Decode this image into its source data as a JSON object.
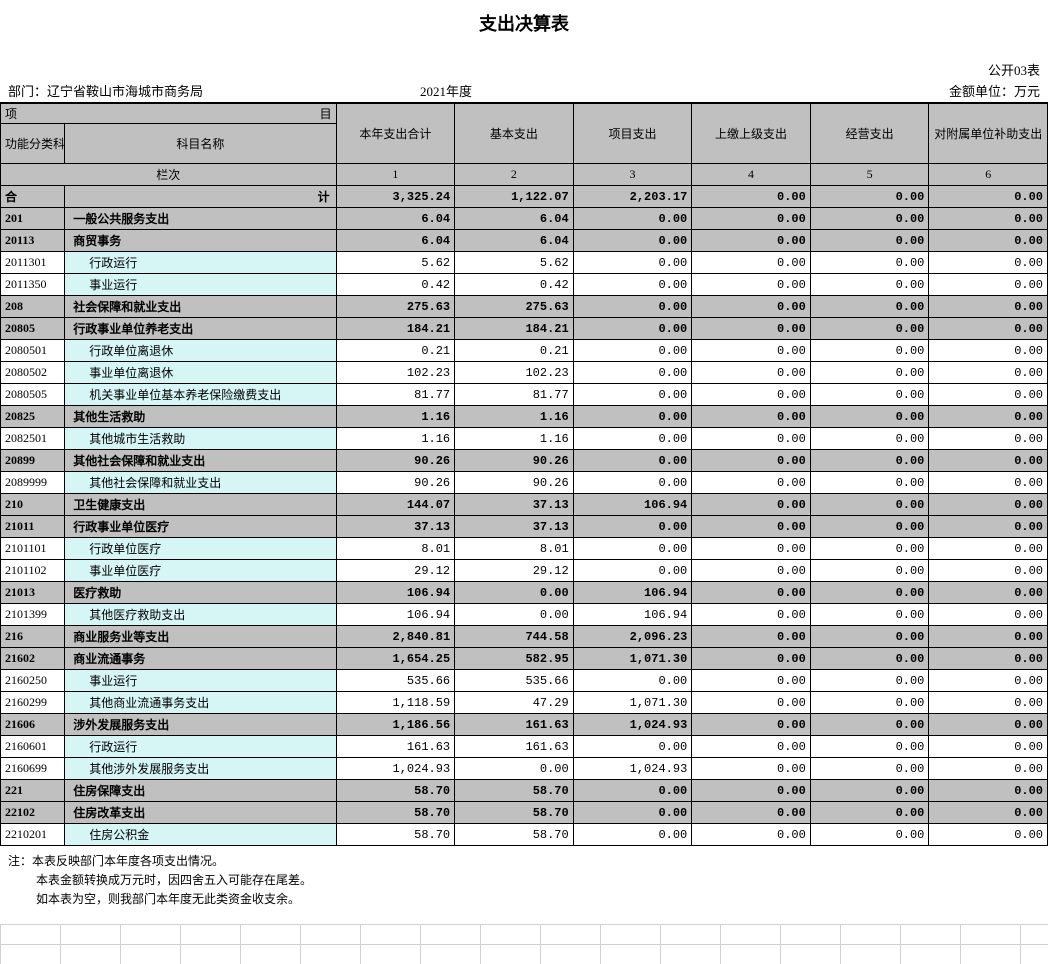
{
  "title": "支出决算表",
  "form_code": "公开03表",
  "dept_label": "部门：辽宁省鞍山市海城市商务局",
  "year": "2021年度",
  "unit": "金额单位：万元",
  "header": {
    "item": "项",
    "item_suffix": "目",
    "code": "功能分类科目编码",
    "name": "科目名称",
    "cols": [
      "本年支出合计",
      "基本支出",
      "项目支出",
      "上缴上级支出",
      "经营支出",
      "对附属单位补助支出"
    ],
    "column_row_label": "栏次",
    "column_nums": [
      "1",
      "2",
      "3",
      "4",
      "5",
      "6"
    ]
  },
  "total": {
    "label_a": "合",
    "label_b": "计",
    "vals": [
      "3,325.24",
      "1,122.07",
      "2,203.17",
      "0.00",
      "0.00",
      "0.00"
    ]
  },
  "rows": [
    {
      "lvl": 1,
      "code": "201",
      "name": "一般公共服务支出",
      "vals": [
        "6.04",
        "6.04",
        "0.00",
        "0.00",
        "0.00",
        "0.00"
      ]
    },
    {
      "lvl": 1,
      "code": "20113",
      "name": "商贸事务",
      "vals": [
        "6.04",
        "6.04",
        "0.00",
        "0.00",
        "0.00",
        "0.00"
      ]
    },
    {
      "lvl": 2,
      "code": "2011301",
      "name": "行政运行",
      "vals": [
        "5.62",
        "5.62",
        "0.00",
        "0.00",
        "0.00",
        "0.00"
      ]
    },
    {
      "lvl": 2,
      "code": "2011350",
      "name": "事业运行",
      "vals": [
        "0.42",
        "0.42",
        "0.00",
        "0.00",
        "0.00",
        "0.00"
      ]
    },
    {
      "lvl": 1,
      "code": "208",
      "name": "社会保障和就业支出",
      "vals": [
        "275.63",
        "275.63",
        "0.00",
        "0.00",
        "0.00",
        "0.00"
      ]
    },
    {
      "lvl": 1,
      "code": "20805",
      "name": "行政事业单位养老支出",
      "vals": [
        "184.21",
        "184.21",
        "0.00",
        "0.00",
        "0.00",
        "0.00"
      ]
    },
    {
      "lvl": 2,
      "code": "2080501",
      "name": "行政单位离退休",
      "vals": [
        "0.21",
        "0.21",
        "0.00",
        "0.00",
        "0.00",
        "0.00"
      ]
    },
    {
      "lvl": 2,
      "code": "2080502",
      "name": "事业单位离退休",
      "vals": [
        "102.23",
        "102.23",
        "0.00",
        "0.00",
        "0.00",
        "0.00"
      ]
    },
    {
      "lvl": 2,
      "code": "2080505",
      "name": "机关事业单位基本养老保险缴费支出",
      "vals": [
        "81.77",
        "81.77",
        "0.00",
        "0.00",
        "0.00",
        "0.00"
      ]
    },
    {
      "lvl": 1,
      "code": "20825",
      "name": "其他生活救助",
      "vals": [
        "1.16",
        "1.16",
        "0.00",
        "0.00",
        "0.00",
        "0.00"
      ]
    },
    {
      "lvl": 2,
      "code": "2082501",
      "name": "其他城市生活救助",
      "vals": [
        "1.16",
        "1.16",
        "0.00",
        "0.00",
        "0.00",
        "0.00"
      ]
    },
    {
      "lvl": 1,
      "code": "20899",
      "name": "其他社会保障和就业支出",
      "vals": [
        "90.26",
        "90.26",
        "0.00",
        "0.00",
        "0.00",
        "0.00"
      ]
    },
    {
      "lvl": 2,
      "code": "2089999",
      "name": "其他社会保障和就业支出",
      "vals": [
        "90.26",
        "90.26",
        "0.00",
        "0.00",
        "0.00",
        "0.00"
      ]
    },
    {
      "lvl": 1,
      "code": "210",
      "name": "卫生健康支出",
      "vals": [
        "144.07",
        "37.13",
        "106.94",
        "0.00",
        "0.00",
        "0.00"
      ]
    },
    {
      "lvl": 1,
      "code": "21011",
      "name": "行政事业单位医疗",
      "vals": [
        "37.13",
        "37.13",
        "0.00",
        "0.00",
        "0.00",
        "0.00"
      ]
    },
    {
      "lvl": 2,
      "code": "2101101",
      "name": "行政单位医疗",
      "vals": [
        "8.01",
        "8.01",
        "0.00",
        "0.00",
        "0.00",
        "0.00"
      ]
    },
    {
      "lvl": 2,
      "code": "2101102",
      "name": "事业单位医疗",
      "vals": [
        "29.12",
        "29.12",
        "0.00",
        "0.00",
        "0.00",
        "0.00"
      ]
    },
    {
      "lvl": 1,
      "code": "21013",
      "name": "医疗救助",
      "vals": [
        "106.94",
        "0.00",
        "106.94",
        "0.00",
        "0.00",
        "0.00"
      ]
    },
    {
      "lvl": 2,
      "code": "2101399",
      "name": "其他医疗救助支出",
      "vals": [
        "106.94",
        "0.00",
        "106.94",
        "0.00",
        "0.00",
        "0.00"
      ]
    },
    {
      "lvl": 1,
      "code": "216",
      "name": "商业服务业等支出",
      "vals": [
        "2,840.81",
        "744.58",
        "2,096.23",
        "0.00",
        "0.00",
        "0.00"
      ]
    },
    {
      "lvl": 1,
      "code": "21602",
      "name": "商业流通事务",
      "vals": [
        "1,654.25",
        "582.95",
        "1,071.30",
        "0.00",
        "0.00",
        "0.00"
      ]
    },
    {
      "lvl": 2,
      "code": "2160250",
      "name": "事业运行",
      "vals": [
        "535.66",
        "535.66",
        "0.00",
        "0.00",
        "0.00",
        "0.00"
      ]
    },
    {
      "lvl": 2,
      "code": "2160299",
      "name": "其他商业流通事务支出",
      "vals": [
        "1,118.59",
        "47.29",
        "1,071.30",
        "0.00",
        "0.00",
        "0.00"
      ]
    },
    {
      "lvl": 1,
      "code": "21606",
      "name": "涉外发展服务支出",
      "vals": [
        "1,186.56",
        "161.63",
        "1,024.93",
        "0.00",
        "0.00",
        "0.00"
      ]
    },
    {
      "lvl": 2,
      "code": "2160601",
      "name": "行政运行",
      "vals": [
        "161.63",
        "161.63",
        "0.00",
        "0.00",
        "0.00",
        "0.00"
      ]
    },
    {
      "lvl": 2,
      "code": "2160699",
      "name": "其他涉外发展服务支出",
      "vals": [
        "1,024.93",
        "0.00",
        "1,024.93",
        "0.00",
        "0.00",
        "0.00"
      ]
    },
    {
      "lvl": 1,
      "code": "221",
      "name": "住房保障支出",
      "vals": [
        "58.70",
        "58.70",
        "0.00",
        "0.00",
        "0.00",
        "0.00"
      ]
    },
    {
      "lvl": 1,
      "code": "22102",
      "name": "住房改革支出",
      "vals": [
        "58.70",
        "58.70",
        "0.00",
        "0.00",
        "0.00",
        "0.00"
      ]
    },
    {
      "lvl": 2,
      "code": "2210201",
      "name": "住房公积金",
      "vals": [
        "58.70",
        "58.70",
        "0.00",
        "0.00",
        "0.00",
        "0.00"
      ]
    }
  ],
  "notes": [
    "注：本表反映部门本年度各项支出情况。",
    "本表金额转换成万元时，因四舍五入可能存在尾差。",
    "如本表为空，则我部门本年度无此类资金收支余。"
  ]
}
